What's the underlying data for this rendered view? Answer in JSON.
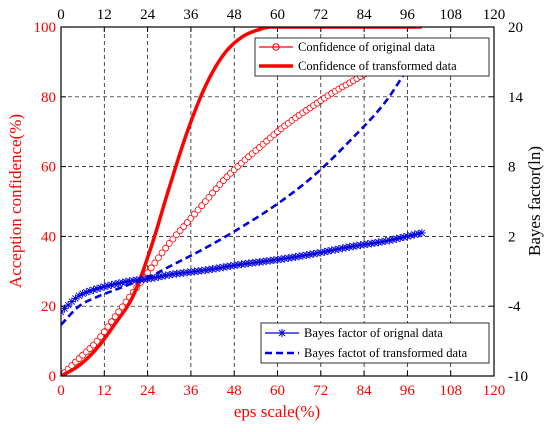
{
  "chart_data": {
    "type": "line",
    "xlabel": "eps scale(%)",
    "ylabel_left": "Acception confidence(%)",
    "ylabel_right": "Bayes factor(ln)",
    "xlim": [
      0,
      120
    ],
    "ylim_left": [
      0,
      100
    ],
    "ylim_right": [
      -10,
      20
    ],
    "x_ticks": [
      "0",
      "12",
      "24",
      "36",
      "48",
      "60",
      "72",
      "84",
      "96",
      "108",
      "120"
    ],
    "y_left_ticks": [
      "0",
      "20",
      "40",
      "60",
      "80",
      "100"
    ],
    "y_right_ticks": [
      "-10",
      "-4",
      "2",
      "8",
      "14",
      "20"
    ],
    "grid": true,
    "colors": {
      "red": "#ff0000",
      "blue": "#0000dd",
      "axis": "#000000"
    },
    "legends": [
      {
        "position": "top-right",
        "entries": [
          "Confidence of original data",
          "Confidence of transformed data"
        ]
      },
      {
        "position": "bottom-right",
        "entries": [
          "Bayes factor of orignal data",
          "Bayes factot of transformed data"
        ]
      }
    ],
    "series": [
      {
        "name": "Confidence of original data",
        "axis": "left",
        "color": "#ff0000",
        "style": "circle-markers",
        "x": [
          0,
          5,
          10,
          15,
          20,
          25,
          30,
          35,
          40,
          45,
          50,
          55,
          60,
          65,
          70,
          75,
          80,
          85,
          90,
          95,
          100
        ],
        "y": [
          0,
          5,
          10,
          17,
          24,
          31,
          38,
          44,
          50,
          56,
          61,
          65.5,
          70,
          74,
          77.5,
          81,
          84,
          87,
          89.5,
          92,
          94
        ]
      },
      {
        "name": "Confidence of transformed data",
        "axis": "left",
        "color": "#ff0000",
        "style": "thick-solid",
        "x": [
          0,
          5,
          10,
          15,
          20,
          25,
          30,
          35,
          40,
          45,
          50,
          55,
          58,
          62,
          70,
          80,
          90,
          100
        ],
        "y": [
          0,
          3,
          8,
          15,
          23,
          37,
          54,
          70,
          83,
          92,
          97,
          99.3,
          100,
          100,
          100,
          100,
          100,
          100
        ]
      },
      {
        "name": "Bayes factor of orignal data",
        "axis": "right",
        "color": "#0000dd",
        "style": "star-markers",
        "x": [
          0,
          5,
          10,
          15,
          20,
          25,
          30,
          40,
          50,
          60,
          70,
          80,
          90,
          100
        ],
        "y": [
          -4.5,
          -3.1,
          -2.5,
          -2.1,
          -1.8,
          -1.6,
          -1.3,
          -0.9,
          -0.4,
          0,
          0.5,
          1.1,
          1.6,
          2.3
        ]
      },
      {
        "name": "Bayes factot of transformed data",
        "axis": "right",
        "color": "#0000dd",
        "style": "dashed",
        "x": [
          0,
          5,
          10,
          15,
          20,
          25,
          30,
          40,
          50,
          60,
          70,
          80,
          90,
          96
        ],
        "y": [
          -5.6,
          -4,
          -3.2,
          -2.6,
          -2,
          -1.4,
          -0.6,
          1,
          2.8,
          4.8,
          7.2,
          10.2,
          13.6,
          16.4
        ]
      }
    ]
  }
}
